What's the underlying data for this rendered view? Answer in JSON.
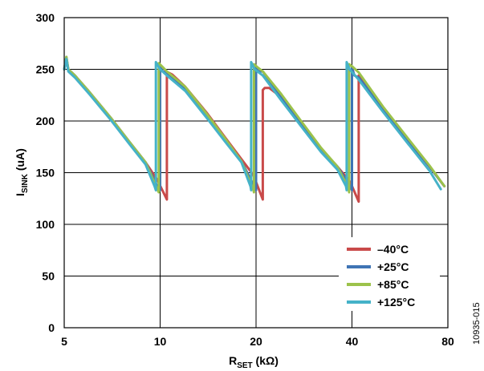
{
  "chart_data": {
    "type": "line",
    "xlabel": {
      "main": "R",
      "sub": "SET",
      "unit": " (kΩ)"
    },
    "ylabel": {
      "main": "I",
      "sub": "SINK",
      "unit": " (uA)"
    },
    "x_scale": "log",
    "xlim": [
      5,
      80
    ],
    "ylim": [
      0,
      300
    ],
    "x_ticks": [
      5,
      10,
      20,
      40,
      80
    ],
    "x_tick_labels": [
      "5",
      "10",
      "20",
      "40",
      "80"
    ],
    "y_ticks": [
      0,
      50,
      100,
      150,
      200,
      250,
      300
    ],
    "y_tick_labels": [
      "0",
      "50",
      "100",
      "150",
      "200",
      "250",
      "300"
    ],
    "grid": true,
    "legend_position": "bottom-right",
    "figure_id": "10935-015",
    "series": [
      {
        "name": "–40°C",
        "color": "#c94a4a",
        "x": [
          5.0,
          5.08,
          5.15,
          5.4,
          6.0,
          7.0,
          8.0,
          9.0,
          9.8,
          10.5,
          10.5,
          10.6,
          10.9,
          12.0,
          14.0,
          16.0,
          18.0,
          19.6,
          21.0,
          21.0,
          21.3,
          22.0,
          24.0,
          28.0,
          32.0,
          36.0,
          39.5,
          42.0,
          42.0,
          42.5,
          44.0,
          50.0,
          60.0,
          70.0,
          78.0
        ],
        "y": [
          250,
          260,
          250,
          244,
          228,
          203,
          180,
          160,
          143,
          124,
          246,
          247,
          245,
          233,
          208,
          184,
          163,
          148,
          124,
          230,
          232,
          232,
          223,
          196,
          173,
          156,
          141,
          122,
          244,
          243,
          237,
          212,
          181,
          156,
          137
        ]
      },
      {
        "name": "+25°C",
        "color": "#3f74b4",
        "x": [
          5.0,
          5.08,
          5.15,
          5.4,
          6.0,
          7.0,
          8.0,
          9.0,
          9.8,
          10.0,
          10.0,
          10.2,
          10.5,
          12.0,
          14.0,
          16.0,
          18.0,
          19.8,
          20.0,
          20.0,
          20.3,
          21.0,
          24.0,
          28.0,
          32.0,
          36.0,
          39.5,
          40.0,
          40.0,
          40.7,
          42.0,
          50.0,
          60.0,
          70.0,
          78.0
        ],
        "y": [
          250,
          262,
          250,
          244,
          228,
          203,
          180,
          160,
          137,
          133,
          252,
          248,
          247,
          231,
          205,
          182,
          161,
          136,
          133,
          252,
          248,
          248,
          223,
          196,
          173,
          156,
          137,
          133,
          252,
          244,
          242,
          212,
          181,
          156,
          137
        ]
      },
      {
        "name": "+85°C",
        "color": "#9cc24b",
        "x": [
          5.0,
          5.08,
          5.15,
          5.4,
          6.0,
          7.0,
          8.0,
          9.0,
          9.8,
          9.9,
          9.9,
          10.2,
          10.5,
          12.0,
          14.0,
          16.0,
          18.0,
          19.6,
          19.7,
          19.7,
          20.2,
          21.0,
          24.0,
          28.0,
          32.0,
          36.0,
          39.0,
          39.2,
          39.2,
          40.0,
          42.0,
          50.0,
          60.0,
          70.0,
          78.0
        ],
        "y": [
          250,
          262,
          250,
          244,
          228,
          203,
          180,
          160,
          134,
          131,
          256,
          252,
          248,
          233,
          207,
          183,
          161,
          134,
          131,
          255,
          252,
          248,
          226,
          198,
          174,
          156,
          135,
          131,
          255,
          253,
          247,
          214,
          183,
          157,
          137
        ]
      },
      {
        "name": "+125°C",
        "color": "#45b2c8",
        "x": [
          5.0,
          5.08,
          5.15,
          5.4,
          6.0,
          7.0,
          8.0,
          9.0,
          9.6,
          9.7,
          9.7,
          10.0,
          10.5,
          12.0,
          14.0,
          16.0,
          18.0,
          19.2,
          19.3,
          19.3,
          19.8,
          21.0,
          24.0,
          28.0,
          32.0,
          36.0,
          38.3,
          38.5,
          38.5,
          39.3,
          42.0,
          50.0,
          60.0,
          70.0,
          76.0
        ],
        "y": [
          250,
          260,
          248,
          242,
          226,
          201,
          178,
          158,
          137,
          133,
          257,
          250,
          244,
          229,
          203,
          180,
          160,
          137,
          133,
          257,
          250,
          244,
          220,
          193,
          170,
          153,
          137,
          133,
          257,
          250,
          240,
          209,
          178,
          152,
          134
        ]
      }
    ]
  }
}
